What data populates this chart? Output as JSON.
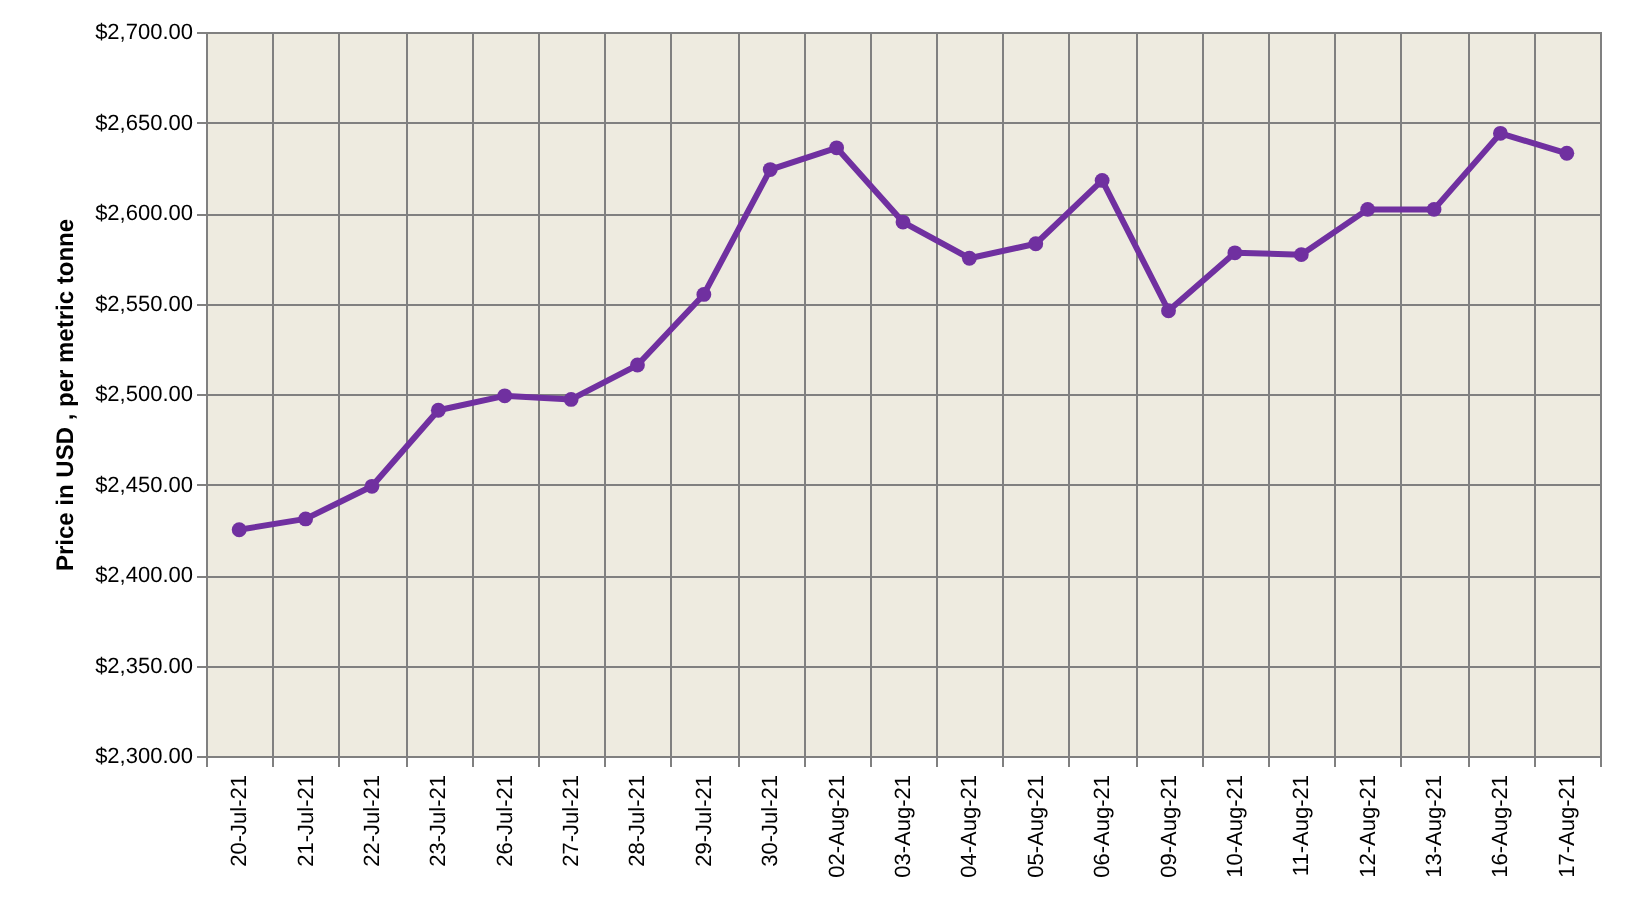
{
  "chart_data": {
    "type": "line",
    "ylabel": "Price in USD , per metric tonne",
    "categories": [
      "20-Jul-21",
      "21-Jul-21",
      "22-Jul-21",
      "23-Jul-21",
      "26-Jul-21",
      "27-Jul-21",
      "28-Jul-21",
      "29-Jul-21",
      "30-Jul-21",
      "02-Aug-21",
      "03-Aug-21",
      "04-Aug-21",
      "05-Aug-21",
      "06-Aug-21",
      "09-Aug-21",
      "10-Aug-21",
      "11-Aug-21",
      "12-Aug-21",
      "13-Aug-21",
      "16-Aug-21",
      "17-Aug-21"
    ],
    "series": [
      {
        "color": "#7030a0",
        "values": [
          2425,
          2431,
          2449,
          2491,
          2499,
          2497,
          2516,
          2555,
          2624,
          2636,
          2595,
          2575,
          2583,
          2618,
          2546,
          2578,
          2577,
          2602,
          2602,
          2644,
          2633
        ]
      }
    ],
    "ylim": [
      2300,
      2700
    ],
    "yticks": [
      {
        "value": 2300,
        "label": "$2,300.00"
      },
      {
        "value": 2350,
        "label": "$2,350.00"
      },
      {
        "value": 2400,
        "label": "$2,400.00"
      },
      {
        "value": 2450,
        "label": "$2,450.00"
      },
      {
        "value": 2500,
        "label": "$2,500.00"
      },
      {
        "value": 2550,
        "label": "$2,550.00"
      },
      {
        "value": 2600,
        "label": "$2,600.00"
      },
      {
        "value": 2650,
        "label": "$2,650.00"
      },
      {
        "value": 2700,
        "label": "$2,700.00"
      }
    ],
    "grid": true,
    "marker": "circle",
    "line_style": "solid"
  }
}
